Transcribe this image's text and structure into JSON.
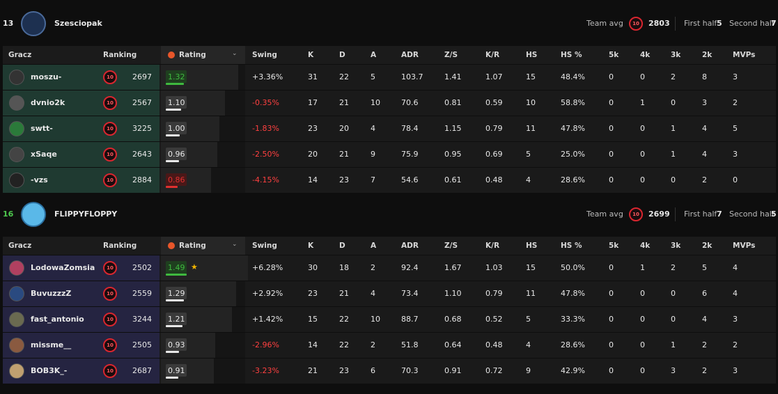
{
  "columns": [
    "Gracz",
    "Ranking",
    "Rating",
    "Swing",
    "K",
    "D",
    "A",
    "ADR",
    "Z/S",
    "K/R",
    "HS",
    "HS %",
    "5k",
    "4k",
    "3k",
    "2k",
    "MVPs"
  ],
  "teams": [
    {
      "score": "13",
      "name": "Szesciopak",
      "avg_label": "Team avg",
      "avg_level": "10",
      "avg": "2803",
      "first_half_label": "First half",
      "first_half": "5",
      "second_half_label": "Second half",
      "second_half": "7",
      "players": [
        {
          "name": "moszu-",
          "level": "10",
          "cells": [
            "2697",
            "1.32",
            "+3.36%",
            "31",
            "22",
            "5",
            "103.7",
            "1.41",
            "1.07",
            "15",
            "48.4%",
            "0",
            "0",
            "2",
            "8",
            "3"
          ]
        },
        {
          "name": "dvnio2k",
          "level": "10",
          "cells": [
            "2567",
            "1.10",
            "-0.35%",
            "17",
            "21",
            "10",
            "70.6",
            "0.81",
            "0.59",
            "10",
            "58.8%",
            "0",
            "1",
            "0",
            "3",
            "2"
          ]
        },
        {
          "name": "swtt-",
          "level": "10",
          "cells": [
            "3225",
            "1.00",
            "-1.83%",
            "23",
            "20",
            "4",
            "78.4",
            "1.15",
            "0.79",
            "11",
            "47.8%",
            "0",
            "0",
            "1",
            "4",
            "5"
          ]
        },
        {
          "name": "xSaqe",
          "level": "10",
          "cells": [
            "2643",
            "0.96",
            "-2.50%",
            "20",
            "21",
            "9",
            "75.9",
            "0.95",
            "0.69",
            "5",
            "25.0%",
            "0",
            "0",
            "1",
            "4",
            "3"
          ]
        },
        {
          "name": "-vzs",
          "level": "10",
          "cells": [
            "2884",
            "0.86",
            "-4.15%",
            "14",
            "23",
            "7",
            "54.6",
            "0.61",
            "0.48",
            "4",
            "28.6%",
            "0",
            "0",
            "0",
            "2",
            "0"
          ]
        }
      ]
    },
    {
      "score": "16",
      "name": "FLIPPYFLOPPY",
      "avg_label": "Team avg",
      "avg_level": "10",
      "avg": "2699",
      "first_half_label": "First half",
      "first_half": "7",
      "second_half_label": "Second half",
      "second_half": "5",
      "players": [
        {
          "name": "LodowaZomsia",
          "level": "10",
          "cells": [
            "2502",
            "1.49",
            "+6.28%",
            "30",
            "18",
            "2",
            "92.4",
            "1.67",
            "1.03",
            "15",
            "50.0%",
            "0",
            "1",
            "2",
            "5",
            "4"
          ]
        },
        {
          "name": "BuvuzzzZ",
          "level": "10",
          "cells": [
            "2559",
            "1.29",
            "+2.92%",
            "23",
            "21",
            "4",
            "73.4",
            "1.10",
            "0.79",
            "11",
            "47.8%",
            "0",
            "0",
            "0",
            "6",
            "4"
          ]
        },
        {
          "name": "fast_antonio",
          "level": "10",
          "cells": [
            "3244",
            "1.21",
            "+1.42%",
            "15",
            "22",
            "10",
            "88.7",
            "0.68",
            "0.52",
            "5",
            "33.3%",
            "0",
            "0",
            "0",
            "4",
            "3"
          ]
        },
        {
          "name": "missme__",
          "level": "10",
          "cells": [
            "2505",
            "0.93",
            "-2.96%",
            "14",
            "22",
            "2",
            "51.8",
            "0.64",
            "0.48",
            "4",
            "28.6%",
            "0",
            "0",
            "1",
            "2",
            "2"
          ]
        },
        {
          "name": "BOB3K_-",
          "level": "10",
          "cells": [
            "2687",
            "0.91",
            "-3.23%",
            "21",
            "23",
            "6",
            "70.3",
            "0.91",
            "0.72",
            "9",
            "42.9%",
            "0",
            "0",
            "3",
            "2",
            "3"
          ]
        }
      ]
    }
  ]
}
